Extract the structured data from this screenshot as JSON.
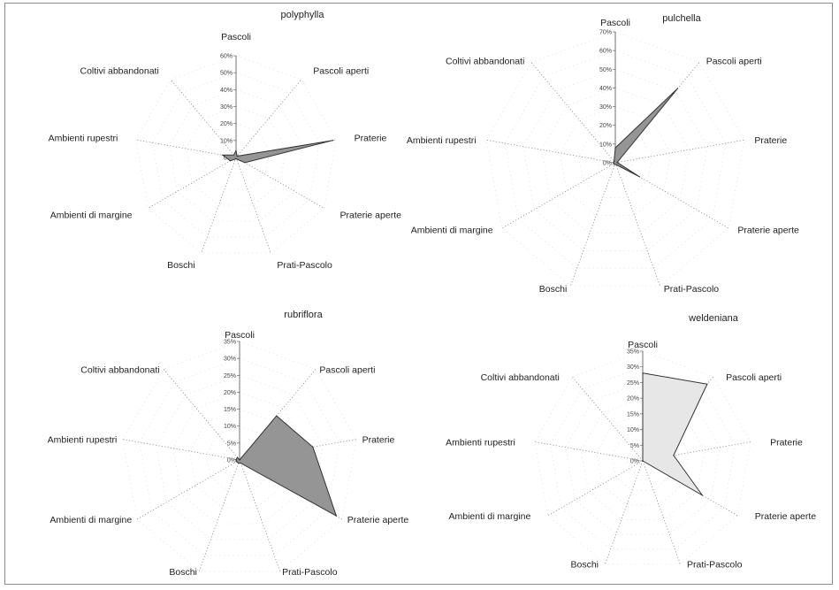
{
  "chart_data": [
    {
      "type": "radar",
      "title": "polyphylla",
      "categories": [
        "Pascoli",
        "Pascoli aperti",
        "Praterie",
        "Praterie aperte",
        "Prati-Pascolo",
        "Boschi",
        "Ambienti di margine",
        "Ambienti rupestri",
        "Coltivi abbandonati"
      ],
      "values": [
        4,
        1,
        58,
        6,
        1,
        1,
        4,
        8,
        2
      ],
      "ylim": [
        0,
        60
      ],
      "ticks": [
        "0%",
        "10%",
        "20%",
        "30%",
        "40%",
        "50%",
        "60%"
      ],
      "fill": "#8f8f8f"
    },
    {
      "type": "radar",
      "title": "pulchella",
      "categories": [
        "Pascoli",
        "Pascoli aperti",
        "Praterie",
        "Praterie aperte",
        "Prati-Pascolo",
        "Boschi",
        "Ambienti di margine",
        "Ambienti rupestri",
        "Coltivi abbandonati"
      ],
      "values": [
        8,
        52,
        1,
        15,
        1,
        1,
        1,
        1,
        1
      ],
      "ylim": [
        0,
        70
      ],
      "ticks": [
        "0%",
        "10%",
        "20%",
        "30%",
        "40%",
        "50%",
        "60%",
        "70%"
      ],
      "fill": "#8f8f8f"
    },
    {
      "type": "radar",
      "title": "rubriflora",
      "categories": [
        "Pascoli",
        "Pascoli aperti",
        "Praterie",
        "Praterie aperte",
        "Prati-Pascolo",
        "Boschi",
        "Ambienti di margine",
        "Ambienti rupestri",
        "Coltivi abbandonati"
      ],
      "values": [
        0,
        17,
        22,
        33,
        1,
        1,
        1,
        1,
        1
      ],
      "ylim": [
        0,
        35
      ],
      "ticks": [
        "0%",
        "5%",
        "10%",
        "15%",
        "20%",
        "25%",
        "30%",
        "35%"
      ],
      "fill": "#8f8f8f"
    },
    {
      "type": "radar",
      "title": "weldeniana",
      "categories": [
        "Pascoli",
        "Pascoli aperti",
        "Praterie",
        "Praterie aperte",
        "Prati-Pascolo",
        "Boschi",
        "Ambienti di margine",
        "Ambienti rupestri",
        "Coltivi abbandonati"
      ],
      "values": [
        28,
        32,
        10,
        22,
        0,
        0,
        0,
        0,
        0
      ],
      "ylim": [
        0,
        35
      ],
      "ticks": [
        "0%",
        "5%",
        "10%",
        "15%",
        "20%",
        "25%",
        "30%",
        "35%"
      ],
      "fill": "#e6e6e6"
    }
  ]
}
